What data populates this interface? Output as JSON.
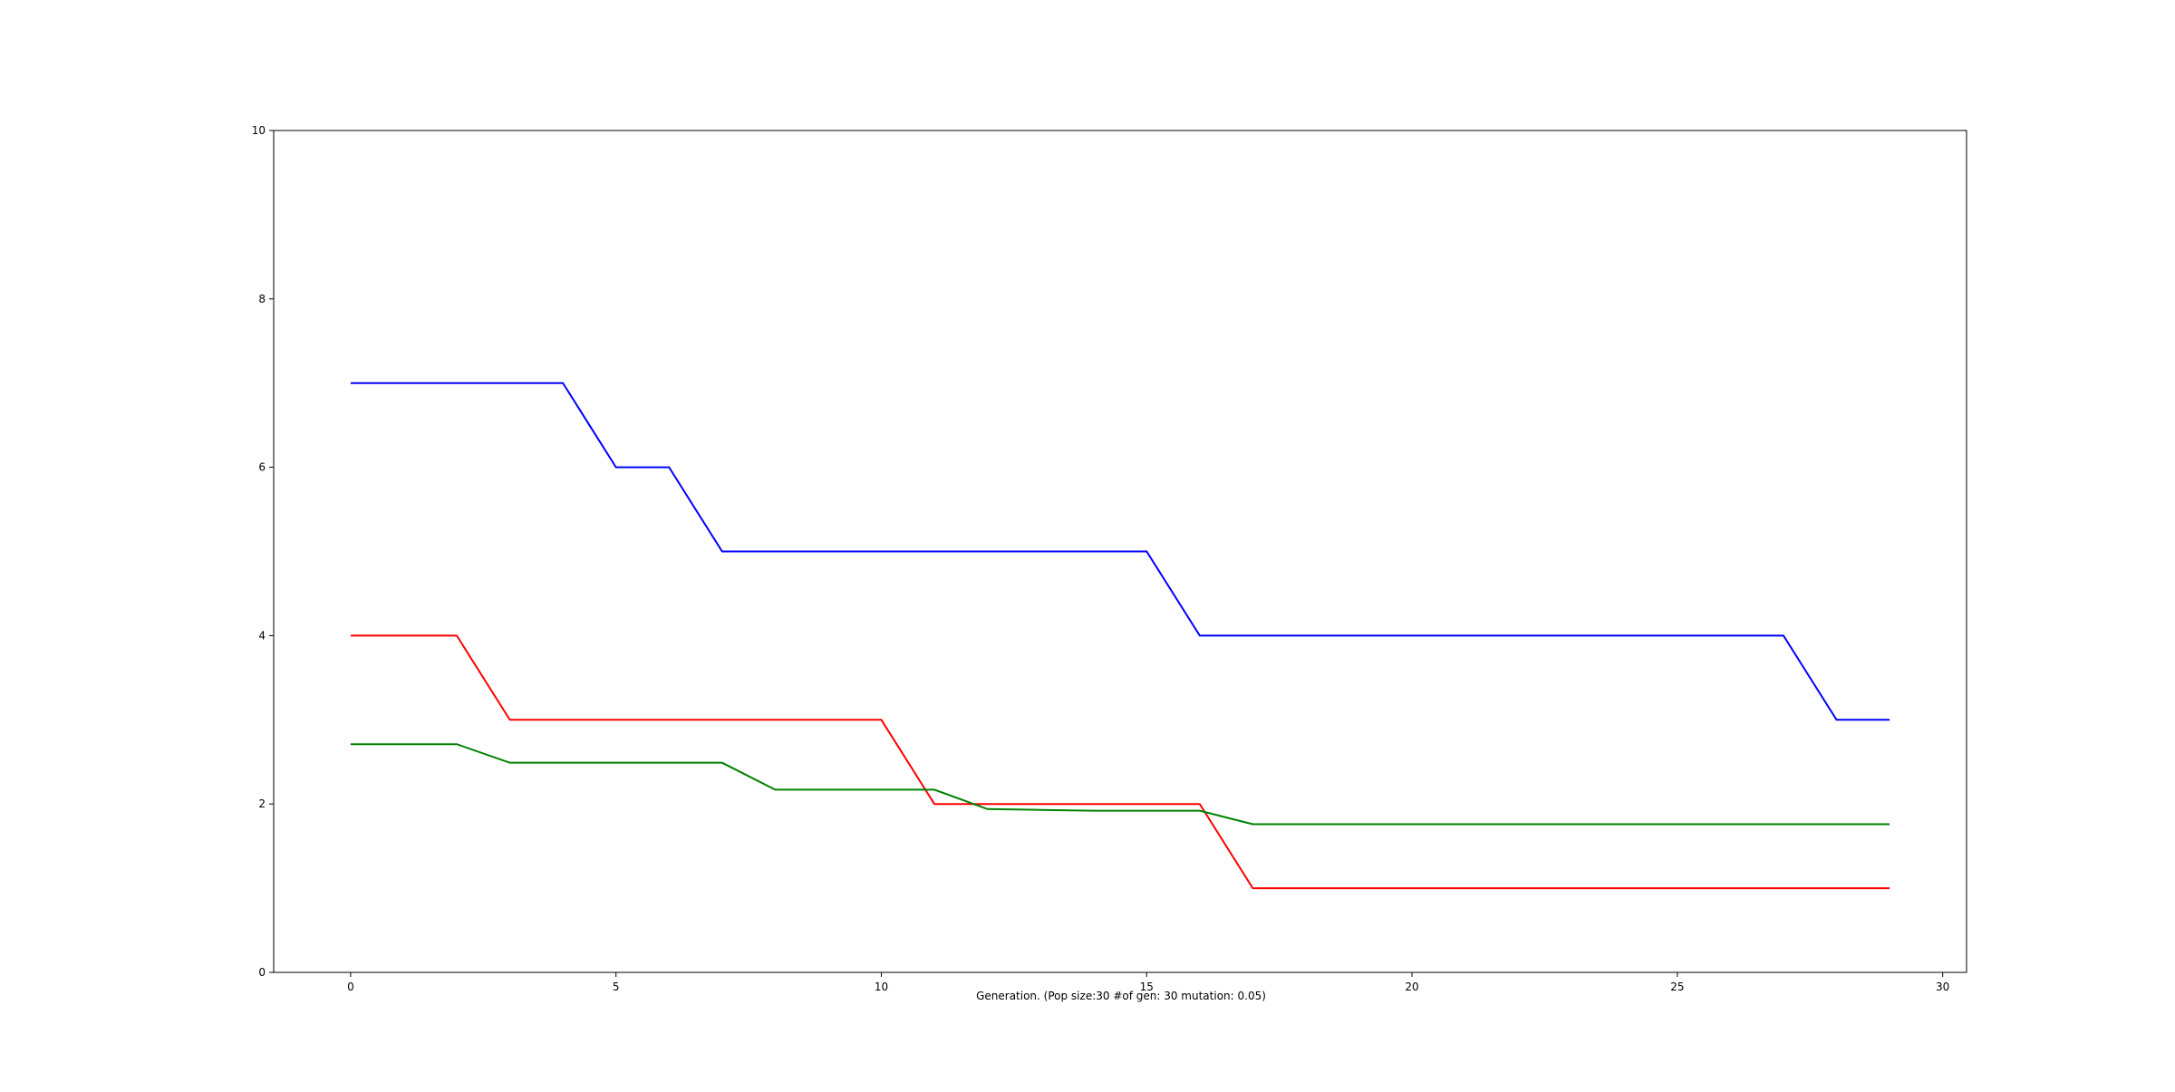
{
  "chart_data": {
    "type": "line",
    "title": "",
    "xlabel": "Generation. (Pop size:30 #of gen: 30 mutation: 0.05)",
    "ylabel": "",
    "xlim": [
      -1.45,
      30.45
    ],
    "ylim": [
      0,
      10
    ],
    "x_ticks": [
      0,
      5,
      10,
      15,
      20,
      25,
      30
    ],
    "y_ticks": [
      0,
      2,
      4,
      6,
      8,
      10
    ],
    "grid": false,
    "x": [
      0,
      1,
      2,
      3,
      4,
      5,
      6,
      7,
      8,
      9,
      10,
      11,
      12,
      13,
      14,
      15,
      16,
      17,
      18,
      19,
      20,
      21,
      22,
      23,
      24,
      25,
      26,
      27,
      28,
      29
    ],
    "series": [
      {
        "color": "#0000ff",
        "values": [
          7,
          7,
          7,
          7,
          7,
          6,
          6,
          5,
          5,
          5,
          5,
          5,
          5,
          5,
          5,
          5,
          4,
          4,
          4,
          4,
          4,
          4,
          4,
          4,
          4,
          4,
          4,
          4,
          3,
          3
        ]
      },
      {
        "color": "#ff0000",
        "values": [
          4,
          4,
          4,
          3,
          3,
          3,
          3,
          3,
          3,
          3,
          3,
          2,
          2,
          2,
          2,
          2,
          2,
          1,
          1,
          1,
          1,
          1,
          1,
          1,
          1,
          1,
          1,
          1,
          1,
          1
        ]
      },
      {
        "color": "#008000",
        "values": [
          2.71,
          2.71,
          2.71,
          2.49,
          2.49,
          2.49,
          2.49,
          2.49,
          2.17,
          2.17,
          2.17,
          2.17,
          1.94,
          1.93,
          1.92,
          1.92,
          1.92,
          1.76,
          1.76,
          1.76,
          1.76,
          1.76,
          1.76,
          1.76,
          1.76,
          1.76,
          1.76,
          1.76,
          1.76,
          1.76
        ]
      }
    ]
  }
}
